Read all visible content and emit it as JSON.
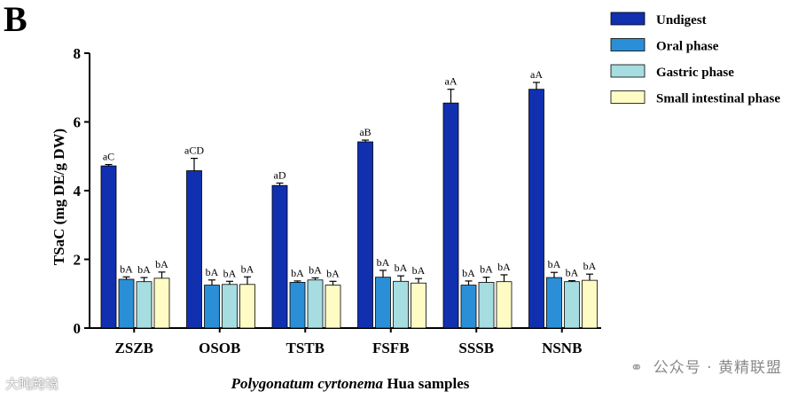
{
  "panel_label": "B",
  "chart_data": {
    "type": "bar",
    "title": "",
    "xlabel_italic": "Polygonatum cyrtonema",
    "xlabel_rest": " Hua samples",
    "ylabel": "TSaC (mg DE/g DW)",
    "ylim": [
      0,
      8
    ],
    "yticks": [
      "0",
      "2",
      "4",
      "6",
      "8"
    ],
    "grid": false,
    "legend_position": "top-right",
    "categories": [
      "ZSZB",
      "OSOB",
      "TSTB",
      "FSFB",
      "SSSB",
      "NSNB"
    ],
    "series": [
      {
        "name": "Undigest",
        "color": "#1030b0",
        "values": [
          4.72,
          4.58,
          4.15,
          5.42,
          6.55,
          6.95
        ],
        "errors": [
          0.04,
          0.36,
          0.07,
          0.05,
          0.4,
          0.2
        ],
        "labels": [
          "aC",
          "aCD",
          "aD",
          "aB",
          "aA",
          "aA"
        ]
      },
      {
        "name": "Oral phase",
        "color": "#2a8fd6",
        "values": [
          1.42,
          1.25,
          1.33,
          1.48,
          1.25,
          1.47
        ],
        "errors": [
          0.07,
          0.15,
          0.04,
          0.2,
          0.12,
          0.15
        ],
        "labels": [
          "bA",
          "bA",
          "bA",
          "bA",
          "bA",
          "bA"
        ]
      },
      {
        "name": "Gastric phase",
        "color": "#a6dde0",
        "values": [
          1.35,
          1.27,
          1.4,
          1.36,
          1.33,
          1.35
        ],
        "errors": [
          0.12,
          0.09,
          0.06,
          0.16,
          0.15,
          0.03
        ],
        "labels": [
          "bA",
          "bA",
          "bA",
          "bA",
          "bA",
          "bA"
        ]
      },
      {
        "name": "Small intestinal phase",
        "color": "#fefcc4",
        "values": [
          1.45,
          1.27,
          1.25,
          1.31,
          1.35,
          1.39
        ],
        "errors": [
          0.18,
          0.22,
          0.11,
          0.13,
          0.2,
          0.18
        ],
        "labels": [
          "bA",
          "bA",
          "bA",
          "bA",
          "bA",
          "bA"
        ]
      }
    ]
  },
  "watermarks": {
    "left": "大盹跨境",
    "right_icon": "wechat-icon",
    "right": "公众号 · 黄精联盟"
  }
}
